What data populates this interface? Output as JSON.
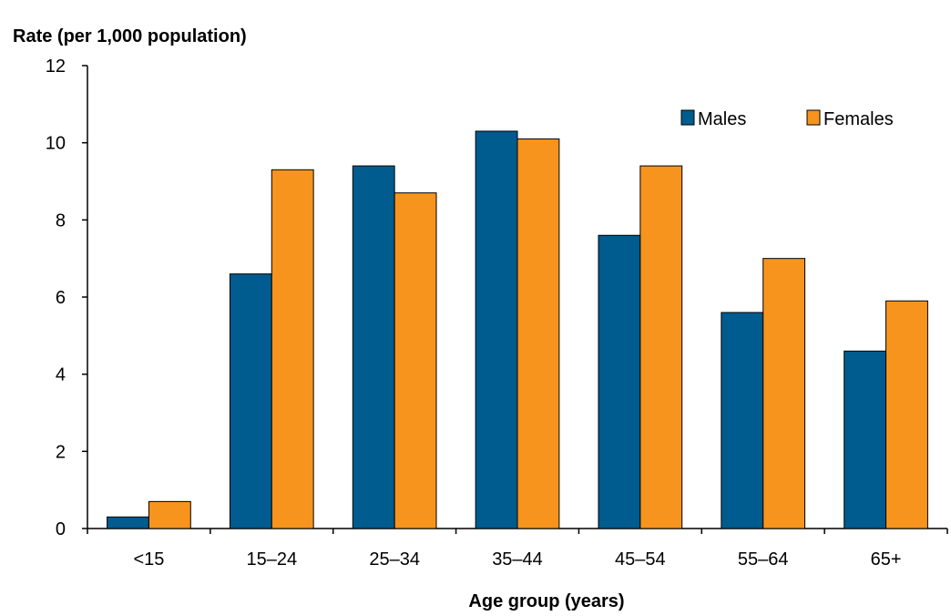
{
  "chart_data": {
    "type": "bar",
    "ylabel": "Rate (per 1,000 population)",
    "xlabel": "Age group (years)",
    "categories": [
      "<15",
      "15–24",
      "25–34",
      "35–44",
      "45–54",
      "55–64",
      "65+"
    ],
    "series": [
      {
        "name": "Males",
        "color": "#005b8e",
        "values": [
          0.3,
          6.6,
          9.4,
          10.3,
          7.6,
          5.6,
          4.6
        ]
      },
      {
        "name": "Females",
        "color": "#f7941d",
        "values": [
          0.7,
          9.3,
          8.7,
          10.1,
          9.4,
          7.0,
          5.9
        ]
      }
    ],
    "ylim": [
      0,
      12
    ],
    "yticks": [
      "0",
      "2",
      "4",
      "6",
      "8",
      "10",
      "12"
    ],
    "grid": false,
    "legend_position": "top-right"
  }
}
